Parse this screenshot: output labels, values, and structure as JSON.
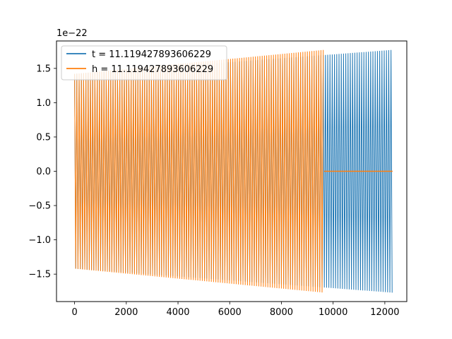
{
  "chart_data": {
    "type": "line",
    "title": "",
    "xlabel": "",
    "ylabel": "",
    "offset_label": "1e−22",
    "xlim": [
      -700,
      12850
    ],
    "ylim": [
      -1.9,
      1.9
    ],
    "x_ticks": [
      {
        "value": 0,
        "label": "0"
      },
      {
        "value": 2000,
        "label": "2000"
      },
      {
        "value": 4000,
        "label": "4000"
      },
      {
        "value": 6000,
        "label": "6000"
      },
      {
        "value": 8000,
        "label": "8000"
      },
      {
        "value": 10000,
        "label": "10000"
      },
      {
        "value": 12000,
        "label": "12000"
      }
    ],
    "y_ticks": [
      {
        "value": -1.5,
        "label": "−1.5"
      },
      {
        "value": -1.0,
        "label": "−1.0"
      },
      {
        "value": -0.5,
        "label": "−0.5"
      },
      {
        "value": 0.0,
        "label": "0.0"
      },
      {
        "value": 0.5,
        "label": "0.5"
      },
      {
        "value": 1.0,
        "label": "1.0"
      },
      {
        "value": 1.5,
        "label": "1.5"
      }
    ],
    "grid": false,
    "legend": "upper-left",
    "series": [
      {
        "name": "t = 11.119427893606229",
        "color": "#1f77b4",
        "kind": "chirp-oscillation",
        "x_start": 0,
        "x_end": 12300,
        "amplitude_start": 1.42,
        "amplitude_end": 1.77,
        "tail_after_x": null
      },
      {
        "name": "h = 11.119427893606229",
        "color": "#ff7f0e",
        "kind": "chirp-oscillation",
        "x_start": 0,
        "x_end": 9650,
        "amplitude_start": 1.42,
        "amplitude_end": 1.77,
        "tail_after_x": 12300,
        "tail_value": 0.0
      }
    ]
  }
}
